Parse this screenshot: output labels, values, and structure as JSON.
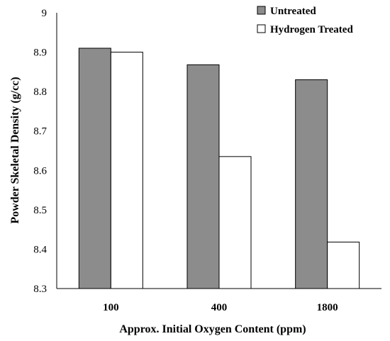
{
  "chart_data": {
    "type": "bar",
    "categories": [
      "100",
      "400",
      "1800"
    ],
    "series": [
      {
        "name": "Untreated",
        "values": [
          8.91,
          8.868,
          8.83
        ],
        "color": "#8c8c8c"
      },
      {
        "name": "Hydrogen Treated",
        "values": [
          8.9,
          8.635,
          8.418
        ],
        "color": "#ffffff"
      }
    ],
    "xlabel": "Approx. Initial Oxygen Content (ppm)",
    "ylabel": "Powder Skeletal Density (g/cc)",
    "ylim": [
      8.3,
      9.0
    ],
    "yticks": [
      "8.3",
      "8.4",
      "8.5",
      "8.6",
      "8.7",
      "8.8",
      "8.9",
      "9"
    ],
    "grid": false,
    "legend_position": "top-right"
  }
}
